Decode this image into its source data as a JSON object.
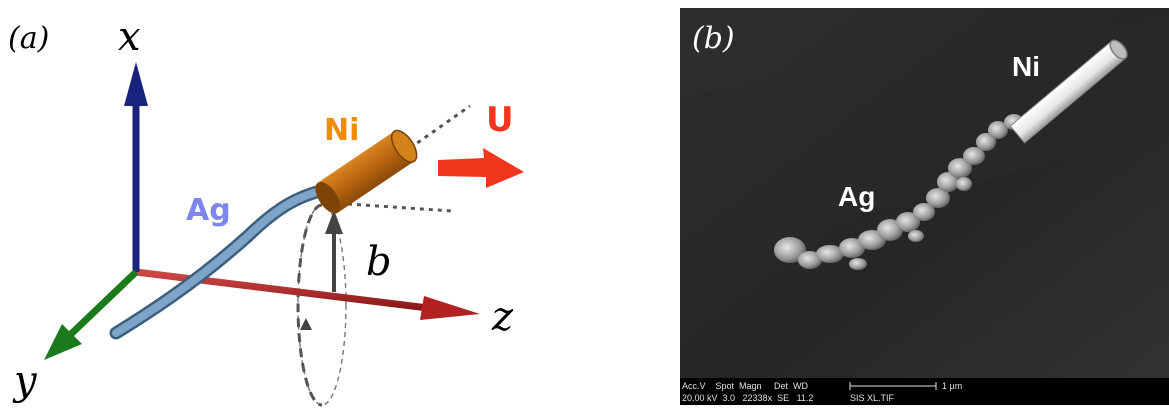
{
  "panel_a": {
    "label": "(a)",
    "axis_x": "x",
    "axis_y": "y",
    "axis_z": "z",
    "ni_label": "Ni",
    "ag_label": "Ag",
    "u_label": "U",
    "b_label": "b",
    "colors": {
      "x_axis": "#1a237e",
      "y_axis": "#1b7a1b",
      "z_axis": "#b22222",
      "ni": "#c46f10",
      "ni_text": "#f08c00",
      "ag_rod": "#6f94b8",
      "ag_text": "#7b86ee",
      "u_arrow": "#f2361d"
    }
  },
  "panel_b": {
    "label": "(b)",
    "ni_label": "Ni",
    "ag_label": "Ag",
    "databar": {
      "row1": "Acc.V    Spot  Magn     Det  WD",
      "row2": "20.00 kV  3.0   22338x  SE   11.2",
      "scale_label": "1 μm",
      "file_label": "SIS XL.TIF"
    }
  }
}
